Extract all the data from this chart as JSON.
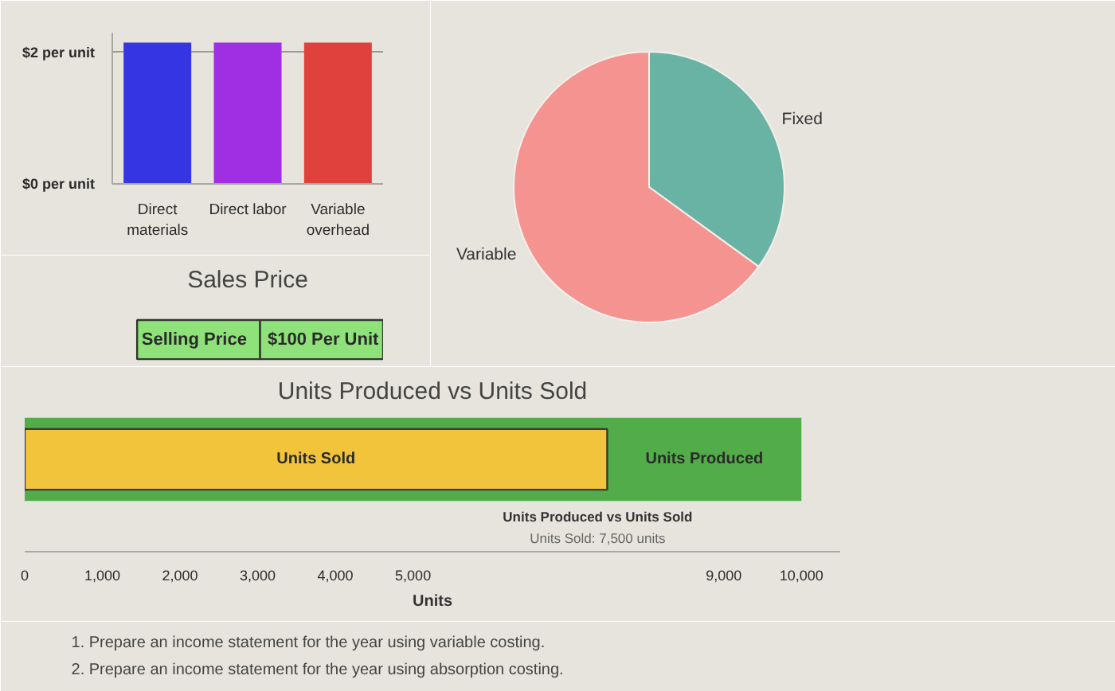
{
  "chart_data": [
    {
      "type": "bar",
      "categories": [
        "Direct materials",
        "Direct labor",
        "Variable overhead"
      ],
      "values": [
        2.15,
        2.15,
        2.15
      ],
      "colors": [
        "#3535e3",
        "#a02fe3",
        "#e0413d"
      ],
      "ylim": [
        0,
        2.3
      ],
      "yticks": [
        {
          "value": 0,
          "label": "$0 per unit"
        },
        {
          "value": 2,
          "label": "$2 per unit"
        }
      ],
      "grid": "y"
    },
    {
      "type": "pie",
      "categories": [
        "Fixed",
        "Variable"
      ],
      "values": [
        35,
        65
      ],
      "colors": [
        "#69b3a5",
        "#f59391"
      ]
    },
    {
      "type": "other",
      "title": "Sales Price",
      "annotations": [
        "Selling Price",
        "$100 Per Unit"
      ],
      "colors": [
        "#8ee279",
        "#8ee279"
      ]
    },
    {
      "type": "bar",
      "orientation": "horizontal",
      "title": "Units Produced vs Units Sold",
      "xlabel": "Units",
      "categories": [
        null
      ],
      "series": [
        {
          "name": "Units Produced",
          "color": "#52ac4a",
          "values": [
            10000
          ]
        },
        {
          "name": "Units Sold",
          "color": "#f2c43c",
          "values": [
            7500
          ]
        }
      ],
      "xlim": [
        0,
        10500
      ],
      "xticks": [
        0,
        {
          "value": 1000,
          "label": "1,000"
        },
        {
          "value": 2000,
          "label": "2,000"
        },
        {
          "value": 3000,
          "label": "3,000"
        },
        {
          "value": 4000,
          "label": "4,000"
        },
        {
          "value": 5000,
          "label": "5,000"
        },
        {
          "value": 9000,
          "label": "9,000"
        },
        {
          "value": 10000,
          "label": "10,000"
        }
      ],
      "annotations": [
        "Units Produced vs Units Sold",
        "Units Sold: 7,500 units"
      ]
    },
    {
      "type": "other",
      "annotations": [
        "1. Prepare an income statement for the year using variable costing.",
        "2. Prepare an income statement for the year using absorption costing."
      ]
    }
  ]
}
